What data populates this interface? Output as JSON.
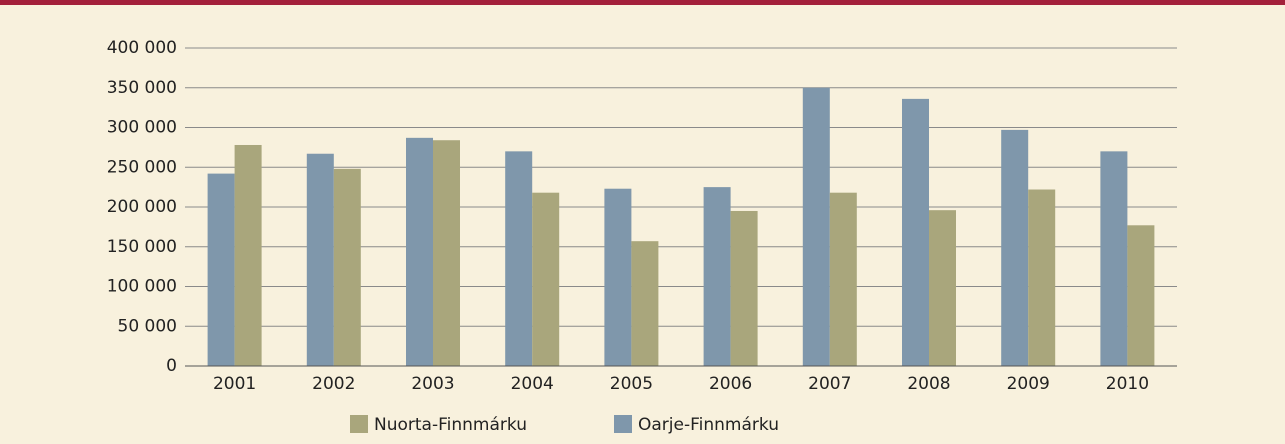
{
  "chart_data": {
    "type": "bar",
    "categories": [
      "2001",
      "2002",
      "2003",
      "2004",
      "2005",
      "2006",
      "2007",
      "2008",
      "2009",
      "2010"
    ],
    "series": [
      {
        "name": "Nuorta-Finnmárku",
        "color": "#a9a67c",
        "values": [
          278000,
          248000,
          284000,
          218000,
          157000,
          195000,
          218000,
          196000,
          222000,
          177000
        ]
      },
      {
        "name": "Oarje-Finnmárku",
        "color": "#7f97ab",
        "values": [
          242000,
          267000,
          287000,
          270000,
          223000,
          225000,
          350000,
          336000,
          297000,
          270000
        ]
      }
    ],
    "ylim": [
      0,
      400000
    ],
    "yticks": [
      {
        "value": 0,
        "label": "0"
      },
      {
        "value": 50000,
        "label": "50 000"
      },
      {
        "value": 100000,
        "label": "100 000"
      },
      {
        "value": 150000,
        "label": "150 000"
      },
      {
        "value": 200000,
        "label": "200 000"
      },
      {
        "value": 250000,
        "label": "250 000"
      },
      {
        "value": 300000,
        "label": "300 000"
      },
      {
        "value": 350000,
        "label": "350 000"
      },
      {
        "value": 400000,
        "label": "400 000"
      }
    ],
    "grid": true
  }
}
